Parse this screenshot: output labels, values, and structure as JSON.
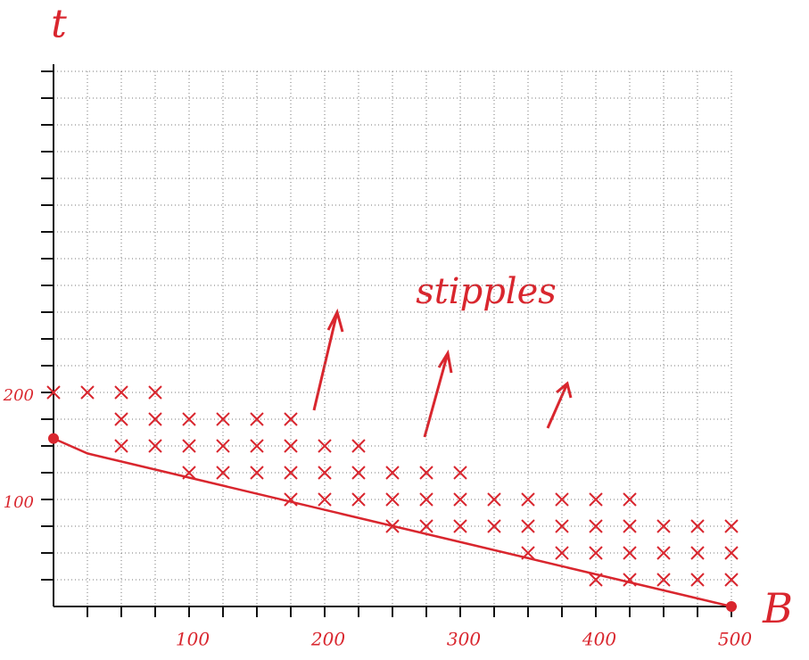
{
  "chart_data": {
    "type": "scatter",
    "y_label": "t",
    "x_label": "B",
    "annotation": "stipples",
    "color": "#d9262e",
    "x": [
      0,
      25,
      50,
      75,
      50,
      75,
      100,
      125,
      150,
      175,
      50,
      75,
      100,
      125,
      150,
      175,
      200,
      225,
      100,
      125,
      150,
      175,
      200,
      225,
      250,
      275,
      300,
      175,
      200,
      225,
      250,
      275,
      300,
      325,
      350,
      375,
      400,
      425,
      250,
      275,
      300,
      325,
      350,
      375,
      400,
      425,
      450,
      475,
      500,
      350,
      375,
      400,
      425,
      450,
      475,
      500,
      400,
      425,
      450,
      475,
      500
    ],
    "y": [
      200,
      200,
      200,
      200,
      175,
      175,
      175,
      175,
      175,
      175,
      150,
      150,
      150,
      150,
      150,
      150,
      150,
      150,
      125,
      125,
      125,
      125,
      125,
      125,
      125,
      125,
      125,
      100,
      100,
      100,
      100,
      100,
      100,
      100,
      100,
      100,
      100,
      100,
      75,
      75,
      75,
      75,
      75,
      75,
      75,
      75,
      75,
      75,
      75,
      50,
      50,
      50,
      50,
      50,
      50,
      50,
      25,
      25,
      25,
      25,
      25
    ],
    "line": {
      "x": [
        0,
        25,
        500
      ],
      "y": [
        157,
        143,
        0
      ],
      "color": "#d9262e"
    },
    "xlim": [
      0,
      500
    ],
    "ylim": [
      0,
      500
    ],
    "xticks": [
      100,
      200,
      300,
      400,
      500
    ],
    "yticks": [
      100,
      200
    ],
    "grid_step": 25,
    "grid": true
  }
}
